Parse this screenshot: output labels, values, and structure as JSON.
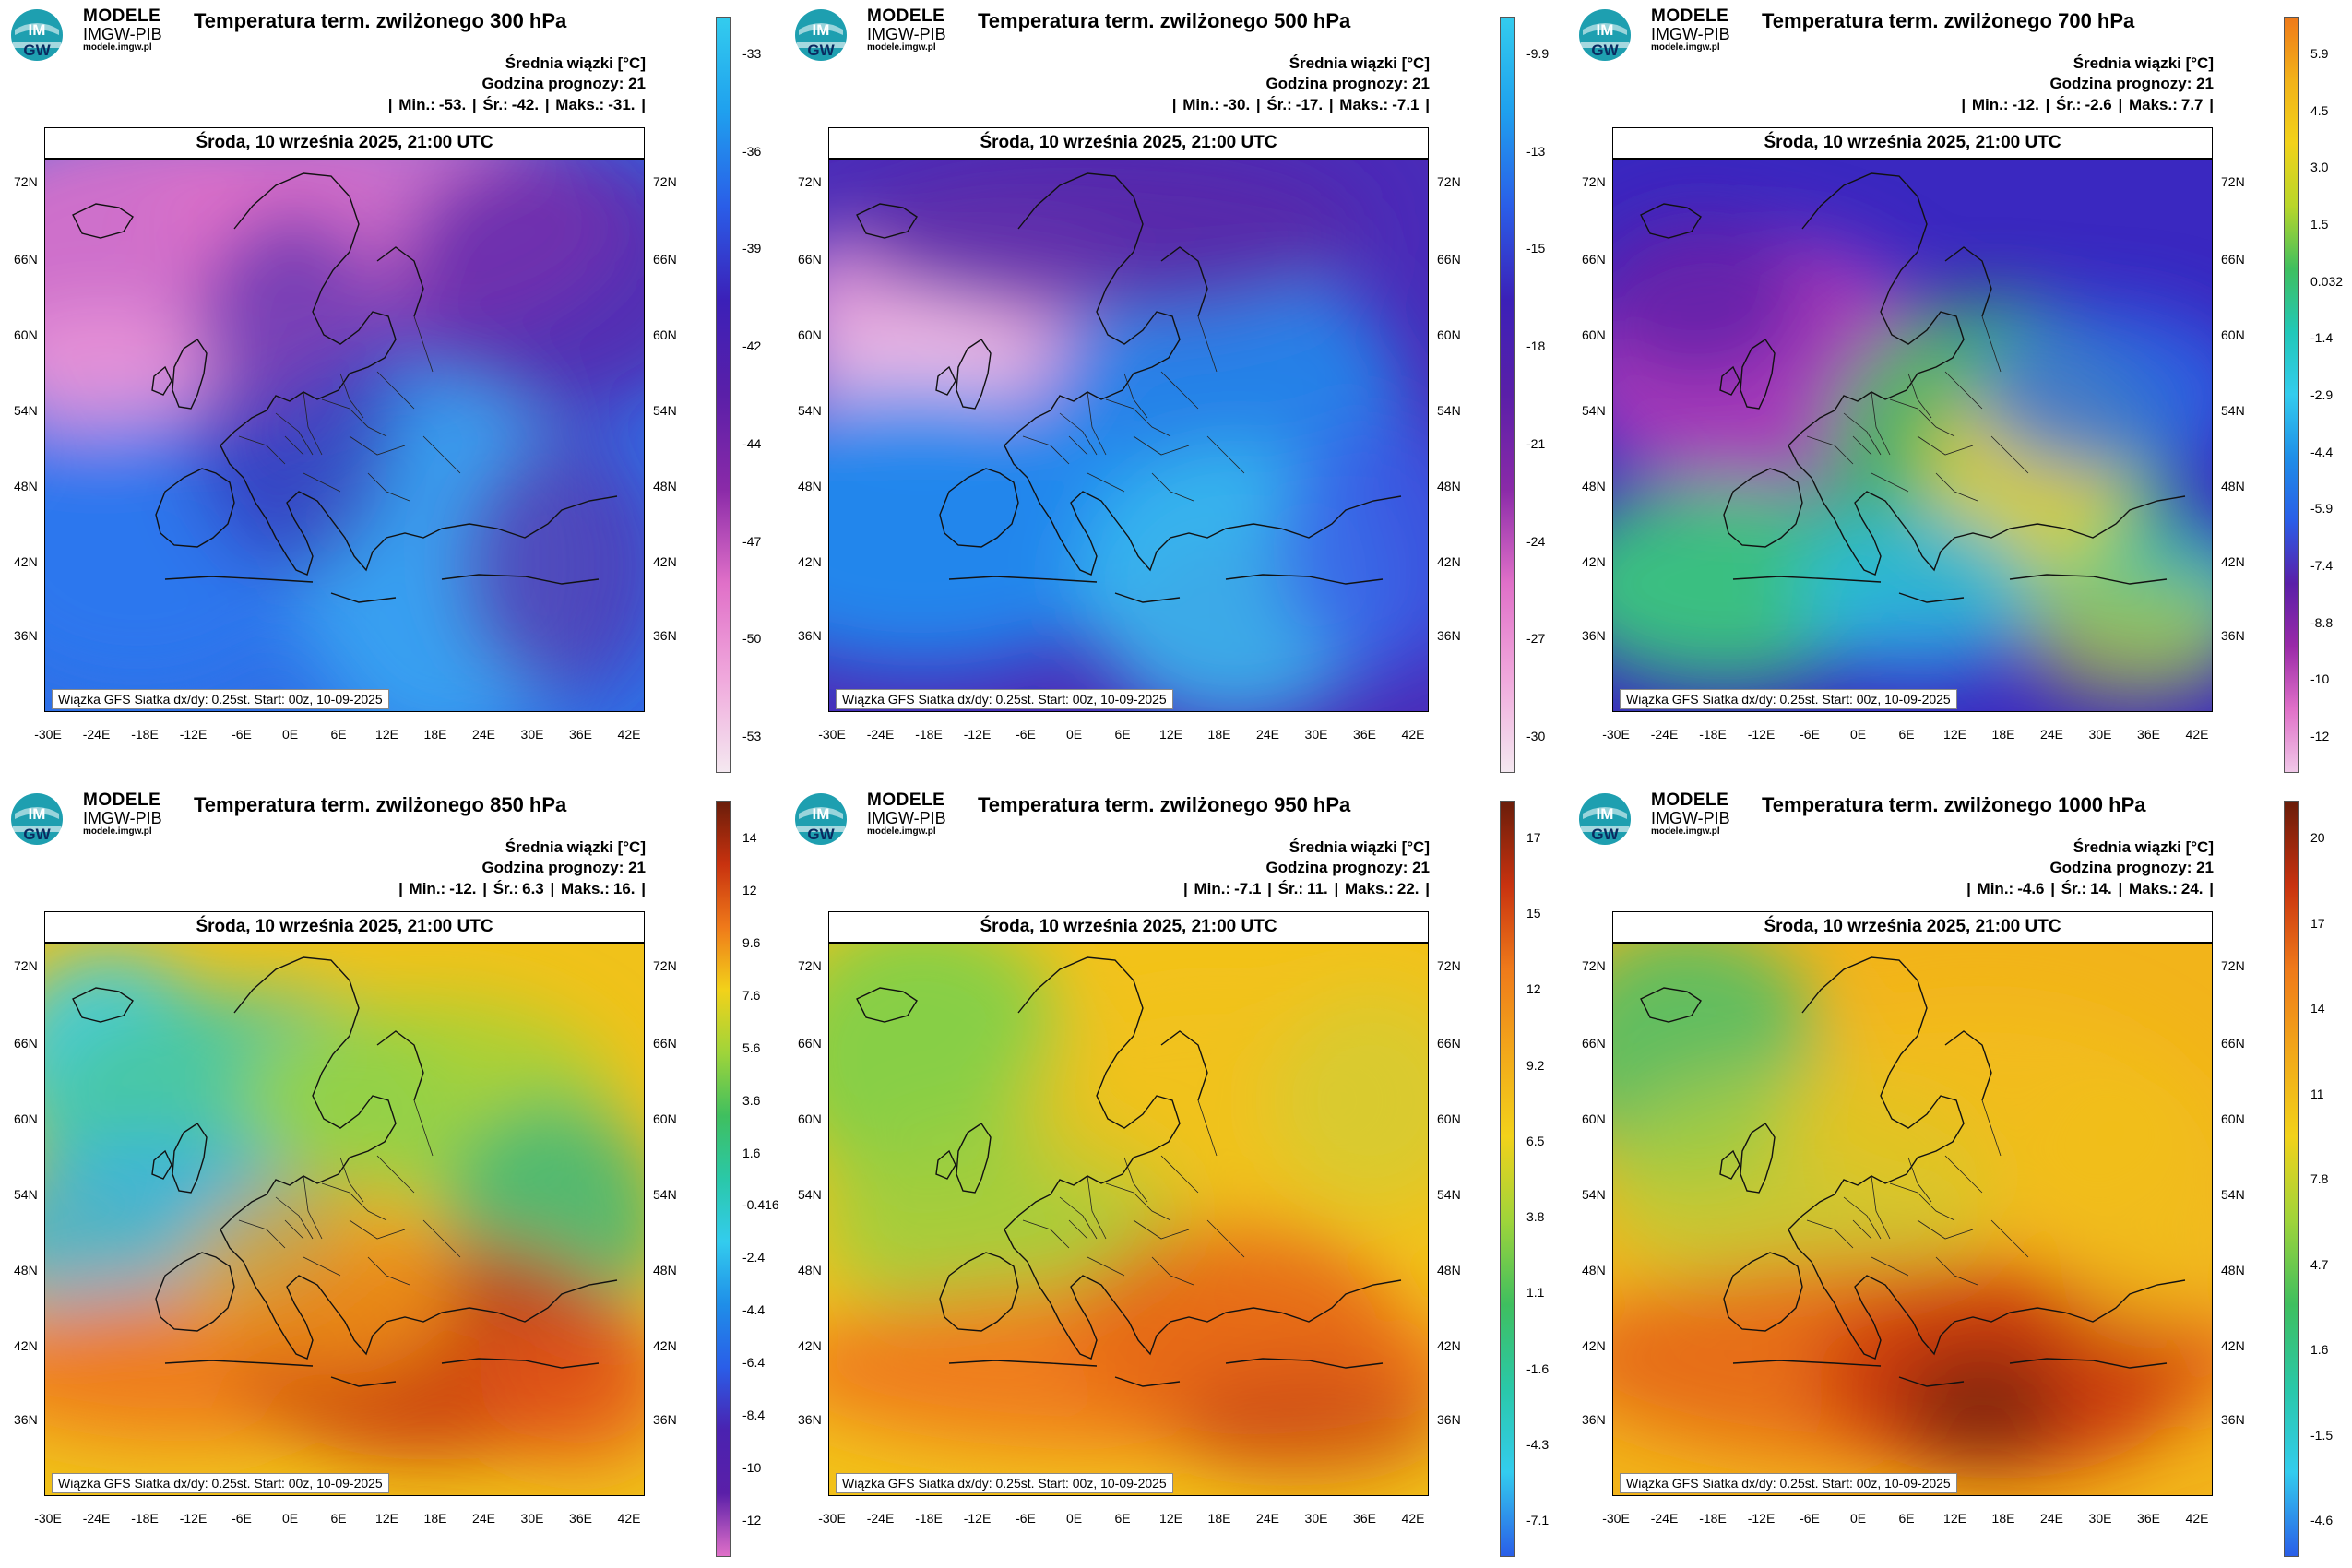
{
  "brand": {
    "name": "MODELE",
    "org": "IMGW-PIB",
    "url": "modele.imgw.pl",
    "logo_text_top": "IM",
    "logo_text_bottom": "GW"
  },
  "header": {
    "mean_label": "Średnia wiązki [°C]",
    "forecast_hour": "Godzina prognozy: 21"
  },
  "date_line": "Środa, 10 września 2025, 21:00 UTC",
  "footer_text": "Wiązka GFS Siatka dx/dy: 0.25st. Start: 00z, 10-09-2025",
  "lat_ticks": [
    "72N",
    "66N",
    "60N",
    "54N",
    "48N",
    "42N",
    "36N"
  ],
  "lon_ticks": [
    "-30E",
    "-24E",
    "-18E",
    "-12E",
    "-6E",
    "0E",
    "6E",
    "12E",
    "18E",
    "24E",
    "30E",
    "36E",
    "42E"
  ],
  "panels": [
    {
      "title": "Temperatura term. zwilżonego 300 hPa",
      "min": "-53.",
      "mean": "-42.",
      "max": "-31.",
      "colorbar": [
        "-33",
        "-36",
        "-39",
        "-42",
        "-44",
        "-47",
        "-50",
        "-53"
      ],
      "palette": "cold"
    },
    {
      "title": "Temperatura term. zwilżonego 500 hPa",
      "min": "-30.",
      "mean": "-17.",
      "max": "-7.1",
      "colorbar": [
        "-9.9",
        "-13",
        "-15",
        "-18",
        "-21",
        "-24",
        "-27",
        "-30"
      ],
      "palette": "cold"
    },
    {
      "title": "Temperatura term. zwilżonego 700 hPa",
      "min": "-12.",
      "mean": "-2.6",
      "max": "7.7",
      "colorbar": [
        "5.9",
        "4.5",
        "3.0",
        "1.5",
        "0.032",
        "-1.4",
        "-2.9",
        "-4.4",
        "-5.9",
        "-7.4",
        "-8.8",
        "-10",
        "-12"
      ],
      "palette": "mid"
    },
    {
      "title": "Temperatura term. zwilżonego 850 hPa",
      "min": "-12.",
      "mean": "6.3",
      "max": "16.",
      "colorbar": [
        "14",
        "12",
        "9.6",
        "7.6",
        "5.6",
        "3.6",
        "1.6",
        "-0.416",
        "-2.4",
        "-4.4",
        "-6.4",
        "-8.4",
        "-10",
        "-12"
      ],
      "palette": "full"
    },
    {
      "title": "Temperatura term. zwilżonego 950 hPa",
      "min": "-7.1",
      "mean": "11.",
      "max": "22.",
      "colorbar": [
        "17",
        "15",
        "12",
        "9.2",
        "6.5",
        "3.8",
        "1.1",
        "-1.6",
        "-4.3",
        "-7.1"
      ],
      "palette": "warm"
    },
    {
      "title": "Temperatura term. zwilżonego 1000 hPa",
      "min": "-4.6",
      "mean": "14.",
      "max": "24.",
      "colorbar": [
        "20",
        "17",
        "14",
        "11",
        "7.8",
        "4.7",
        "1.6",
        "-1.5",
        "-4.6"
      ],
      "palette": "warm"
    }
  ],
  "stat_labels": {
    "min": "Min.:",
    "mean": "Śr.:",
    "max": "Maks.:"
  },
  "colors": {
    "magenta": "#e070c8",
    "purple": "#5a1fa8",
    "blue": "#2a5ee8",
    "cyan": "#33ccee",
    "green": "#3fbf5f",
    "yellow": "#f2d21a",
    "orange": "#ef7a1a",
    "red": "#c8320f",
    "darkred": "#6a1d0a"
  }
}
